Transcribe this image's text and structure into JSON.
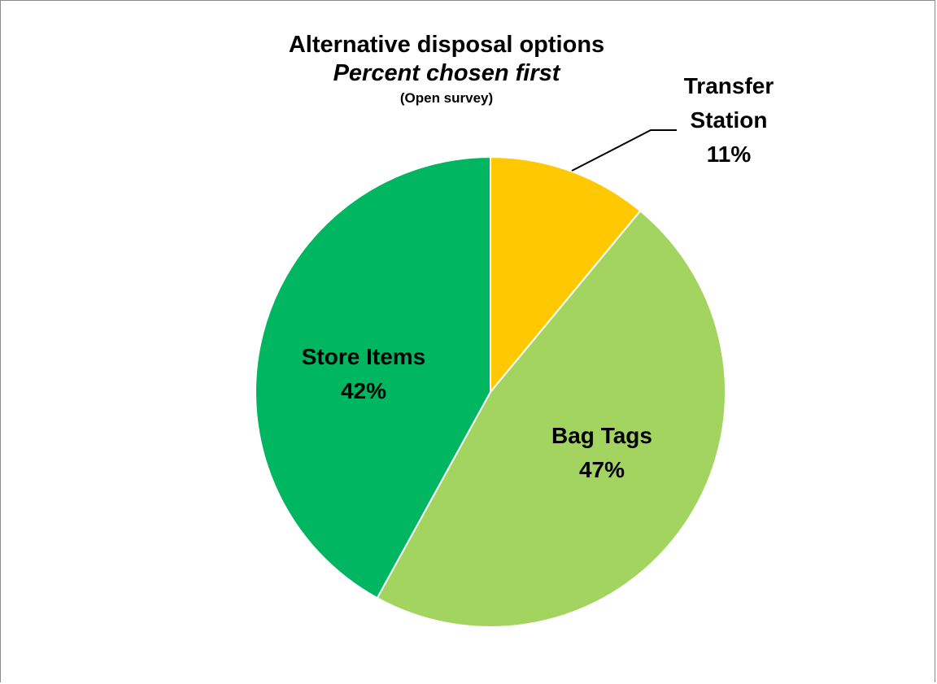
{
  "chart_data": {
    "type": "pie",
    "title": "Alternative disposal options",
    "subtitle": "Percent chosen first",
    "note": "(Open survey)",
    "slices": [
      {
        "label": "Transfer Station",
        "label_lines": [
          "Transfer",
          "Station"
        ],
        "value": 11,
        "value_label": "11%",
        "color": "#ffc800"
      },
      {
        "label": "Bag Tags",
        "label_lines": [
          "Bag Tags"
        ],
        "value": 47,
        "value_label": "47%",
        "color": "#a2d45f"
      },
      {
        "label": "Store Items",
        "label_lines": [
          "Store Items"
        ],
        "value": 42,
        "value_label": "42%",
        "color": "#00b661"
      }
    ],
    "start_angle_deg": 0,
    "direction": "clockwise",
    "legend": "none"
  },
  "colors": {
    "border": "#8c8c8c",
    "slice_edge": "#ffffff",
    "leader_line": "#000000"
  }
}
